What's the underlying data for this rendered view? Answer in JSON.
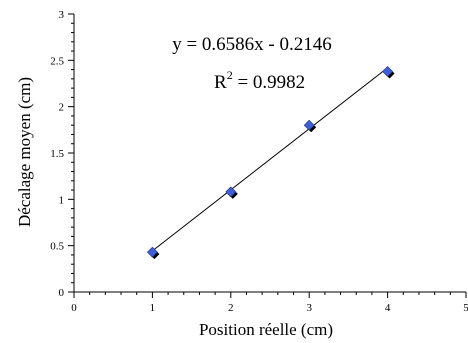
{
  "chart_data": {
    "type": "scatter",
    "xlabel": "Position réelle (cm)",
    "ylabel": "Décalage moyen (cm)",
    "xlim": [
      0,
      5
    ],
    "ylim": [
      0,
      3
    ],
    "x_ticks": [
      "0",
      "1",
      "2",
      "3",
      "4",
      "5"
    ],
    "y_ticks": [
      "0",
      "0.5",
      "1",
      "1.5",
      "2",
      "2.5",
      "3"
    ],
    "grid": false,
    "series": [
      {
        "x": [
          1,
          2,
          3,
          4
        ],
        "y": [
          0.43,
          1.08,
          1.8,
          2.38
        ],
        "marker": "diamond",
        "color": "#3f5fd6"
      }
    ],
    "trendline": {
      "slope": 0.6586,
      "intercept": -0.2146,
      "x_range": [
        1,
        4
      ],
      "color": "#000000"
    },
    "annotations": {
      "equation": "y = 0.6586x - 0.2146",
      "r2_base": "R",
      "r2_exp": "2",
      "r2_value": " = 0.9982"
    }
  }
}
